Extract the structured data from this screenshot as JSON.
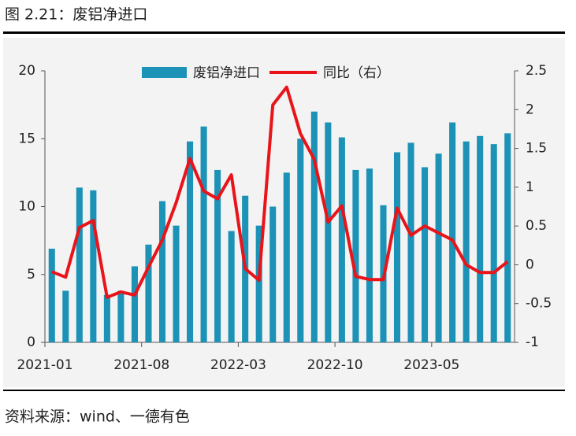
{
  "chart_data": {
    "type": "bar-line",
    "title": "图 2.21：废铝净进口",
    "source": "资料来源：wind、一德有色",
    "categories": [
      "2021-01",
      null,
      null,
      null,
      null,
      null,
      null,
      "2021-08",
      null,
      null,
      null,
      null,
      null,
      null,
      "2022-03",
      null,
      null,
      null,
      null,
      null,
      null,
      "2022-10",
      null,
      null,
      null,
      null,
      null,
      null,
      "2023-05",
      null,
      null,
      null,
      null,
      null
    ],
    "series": [
      {
        "name": "废铝净进口",
        "type": "bar",
        "color": "#1b92b6",
        "values": [
          6.9,
          3.8,
          11.4,
          11.2,
          3.5,
          3.8,
          5.6,
          7.2,
          10.4,
          8.6,
          14.8,
          15.9,
          12.7,
          8.2,
          10.8,
          8.6,
          10.0,
          12.5,
          15.0,
          17.0,
          16.2,
          15.1,
          12.7,
          12.8,
          10.1,
          14.0,
          14.7,
          12.9,
          13.9,
          16.2,
          14.8,
          15.2,
          14.6,
          15.4
        ]
      },
      {
        "name": "同比（右）",
        "type": "line",
        "axis": "y2",
        "color": "#e8141a",
        "values": [
          -0.09,
          -0.16,
          0.48,
          0.57,
          -0.42,
          -0.35,
          -0.39,
          -0.03,
          0.32,
          0.8,
          1.37,
          0.95,
          0.85,
          1.16,
          -0.05,
          -0.2,
          2.06,
          2.29,
          1.69,
          1.36,
          0.55,
          0.76,
          -0.15,
          -0.19,
          -0.19,
          0.73,
          0.38,
          0.5,
          0.41,
          0.32,
          0.0,
          -0.1,
          -0.1,
          0.04
        ]
      }
    ],
    "ylim": [
      0,
      20
    ],
    "yticks": [
      0,
      5,
      10,
      15,
      20
    ],
    "y2lim": [
      -1,
      2.5
    ],
    "y2ticks": [
      -1,
      -0.5,
      0,
      0.5,
      1,
      1.5,
      2,
      2.5
    ],
    "legend": "top"
  }
}
